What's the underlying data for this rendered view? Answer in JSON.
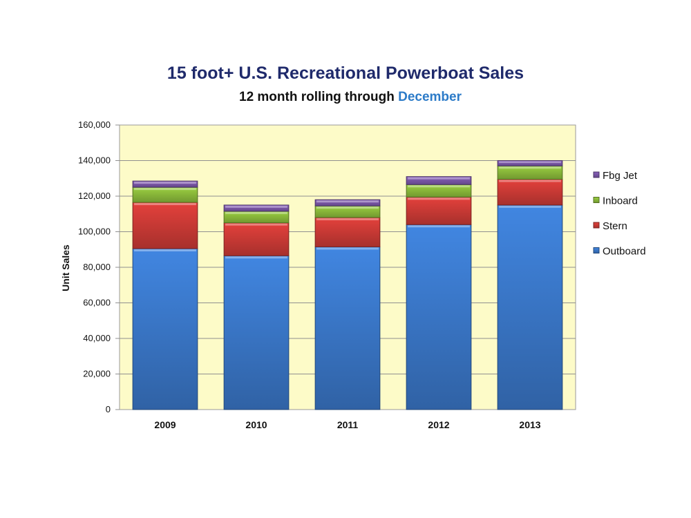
{
  "chart_data": {
    "type": "bar",
    "stacked": true,
    "title": "15 foot+ U.S. Recreational Powerboat Sales",
    "subtitle_prefix": "12 month rolling through",
    "subtitle_highlight": "December",
    "ylabel": "Unit Sales",
    "xlabel": "",
    "ylim": [
      0,
      160000
    ],
    "yticks": [
      "0",
      "20,000",
      "40,000",
      "60,000",
      "80,000",
      "100,000",
      "120,000",
      "140,000",
      "160,000"
    ],
    "categories": [
      "2009",
      "2010",
      "2011",
      "2012",
      "2013"
    ],
    "grid": true,
    "legend_position": "right",
    "plot_background": "#fdfbc8",
    "series": [
      {
        "name": "Outboard",
        "color": "#3a78c9",
        "values": [
          90500,
          86500,
          91500,
          104000,
          115000
        ]
      },
      {
        "name": "Stern",
        "color": "#cc3a36",
        "values": [
          26000,
          18500,
          16500,
          15500,
          14500
        ]
      },
      {
        "name": "Inboard",
        "color": "#8ab93a",
        "values": [
          8500,
          6500,
          6500,
          7000,
          7500
        ]
      },
      {
        "name": "Fbg Jet",
        "color": "#7a56a8",
        "values": [
          3500,
          3500,
          3500,
          4500,
          3000
        ]
      }
    ]
  }
}
